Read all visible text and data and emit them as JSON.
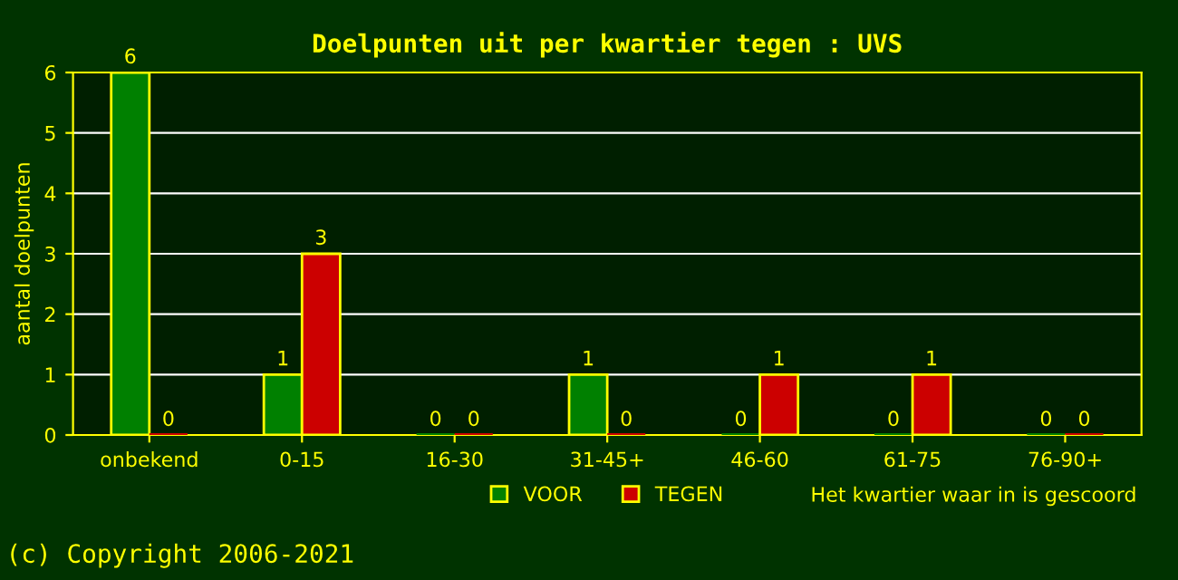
{
  "chart_data": {
    "type": "bar",
    "title": "Doelpunten uit per kwartier tegen : UVS",
    "categories": [
      "onbekend",
      "0-15",
      "16-30",
      "31-45+",
      "46-60",
      "61-75",
      "76-90+"
    ],
    "series": [
      {
        "name": "VOOR",
        "color": "#008000",
        "values": [
          6,
          1,
          0,
          1,
          0,
          0,
          0
        ]
      },
      {
        "name": "TEGEN",
        "color": "#cc0000",
        "values": [
          0,
          3,
          0,
          0,
          1,
          1,
          0
        ]
      }
    ],
    "ylim": [
      0,
      6
    ],
    "yticks": [
      0,
      1,
      2,
      3,
      4,
      5,
      6
    ],
    "grid": "y",
    "legend": "bottom",
    "data_labels": true,
    "xlabel": "Het kwartier waar in is gescoord",
    "ylabel": "aantal doelpunten",
    "annotations": [
      "(c) Copyright 2006-2021"
    ]
  }
}
